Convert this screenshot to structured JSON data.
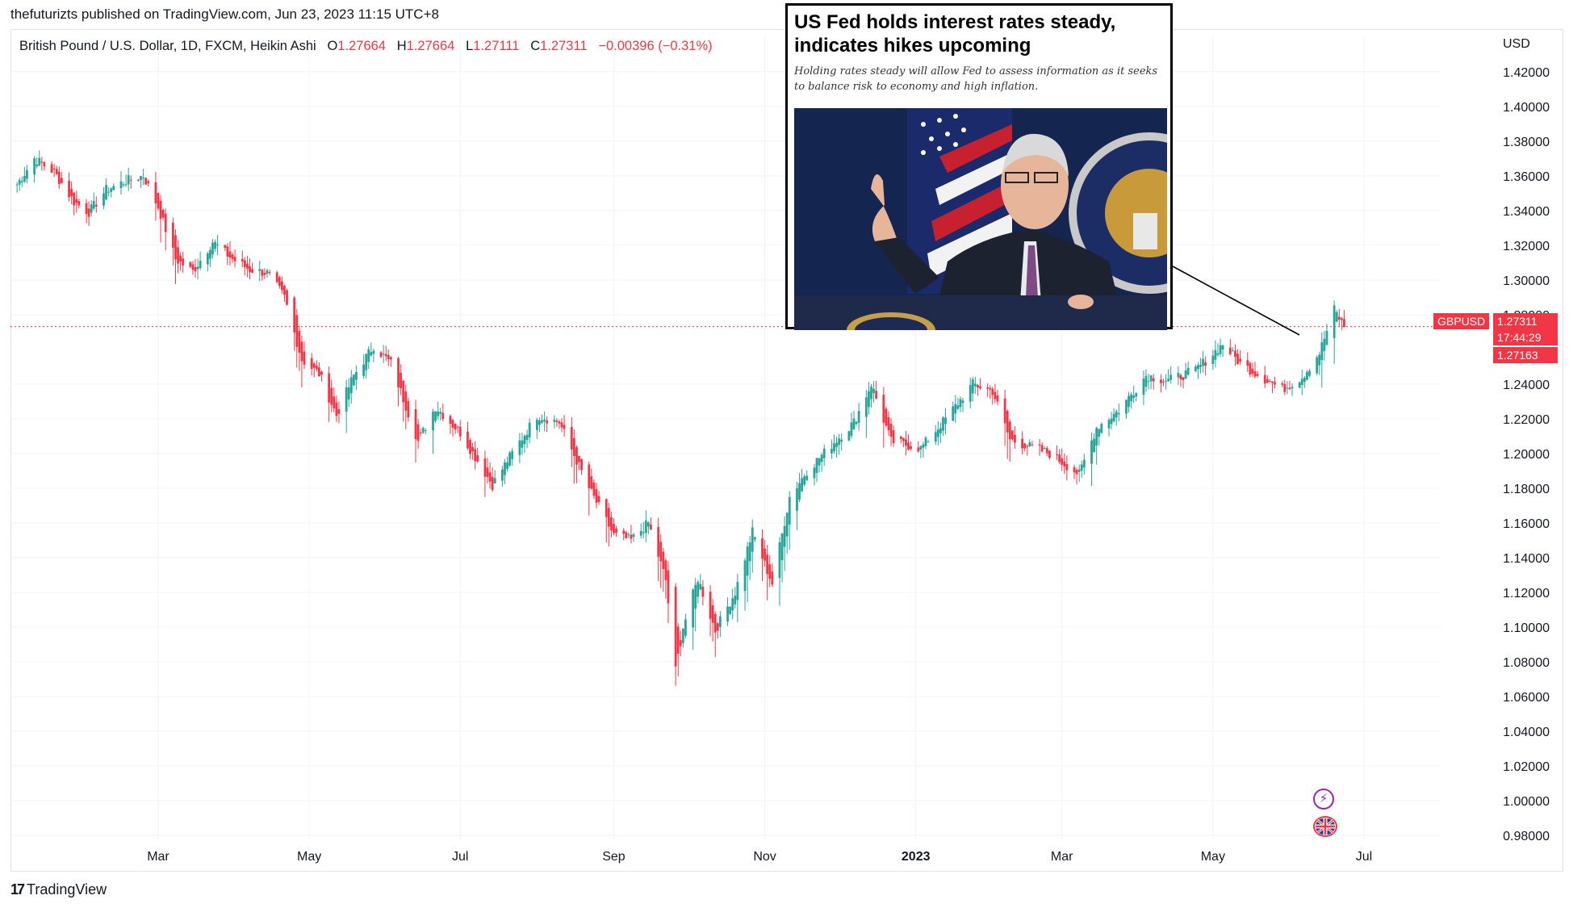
{
  "header": {
    "publisher": "thefuturizts published on TradingView.com, Jun 23, 2023 11:15 UTC+8",
    "symbol": "British Pound / U.S. Dollar, 1D, FXCM, Heikin Ashi",
    "ohlc": {
      "o_label": "O",
      "o": "1.27664",
      "h_label": "H",
      "h": "1.27664",
      "l_label": "L",
      "l": "1.27111",
      "c_label": "C",
      "c": "1.27311",
      "change": "−0.00396 (−0.31%)"
    }
  },
  "axis": {
    "currency": "USD",
    "price_ticks": [
      "1.42000",
      "1.40000",
      "1.38000",
      "1.36000",
      "1.34000",
      "1.32000",
      "1.30000",
      "1.28000",
      "1.24000",
      "1.22000",
      "1.20000",
      "1.18000",
      "1.16000",
      "1.14000",
      "1.12000",
      "1.10000",
      "1.08000",
      "1.06000",
      "1.04000",
      "1.02000",
      "1.00000",
      "0.98000"
    ],
    "time_ticks": [
      "Mar",
      "May",
      "Jul",
      "Sep",
      "Nov",
      "2023",
      "Mar",
      "May",
      "Jul"
    ]
  },
  "badges": {
    "symbol": "GBPUSD",
    "last_price": "1.27311",
    "countdown": "17:44:29",
    "prev_price": "1.27163"
  },
  "news": {
    "headline": "US Fed holds interest rates steady, indicates hikes upcoming",
    "subheadline": "Holding rates steady will allow Fed to assess information as it seeks to balance risk to economy and high inflation."
  },
  "footer": {
    "brand": "TradingView"
  },
  "colors": {
    "up": "#26a69a",
    "down": "#f23645",
    "grid": "#f0f3fa",
    "price_line": "#f23645"
  },
  "chart_data": {
    "type": "candlestick",
    "title": "British Pound / U.S. Dollar, 1D, FXCM, Heikin Ashi",
    "ylabel": "USD",
    "ylim": [
      0.98,
      1.425
    ],
    "x_range": [
      "2022-01-01",
      "2023-07-31"
    ],
    "last_close": 1.27311,
    "path_close": [
      {
        "date": "2022-01-03",
        "v": 1.355
      },
      {
        "date": "2022-01-10",
        "v": 1.37
      },
      {
        "date": "2022-01-18",
        "v": 1.362
      },
      {
        "date": "2022-01-26",
        "v": 1.345
      },
      {
        "date": "2022-02-01",
        "v": 1.339
      },
      {
        "date": "2022-02-08",
        "v": 1.352
      },
      {
        "date": "2022-02-16",
        "v": 1.357
      },
      {
        "date": "2022-02-23",
        "v": 1.36
      },
      {
        "date": "2022-03-01",
        "v": 1.342
      },
      {
        "date": "2022-03-08",
        "v": 1.312
      },
      {
        "date": "2022-03-15",
        "v": 1.305
      },
      {
        "date": "2022-03-23",
        "v": 1.322
      },
      {
        "date": "2022-03-31",
        "v": 1.312
      },
      {
        "date": "2022-04-07",
        "v": 1.306
      },
      {
        "date": "2022-04-14",
        "v": 1.304
      },
      {
        "date": "2022-04-21",
        "v": 1.29
      },
      {
        "date": "2022-04-28",
        "v": 1.254
      },
      {
        "date": "2022-05-05",
        "v": 1.246
      },
      {
        "date": "2022-05-12",
        "v": 1.222
      },
      {
        "date": "2022-05-19",
        "v": 1.245
      },
      {
        "date": "2022-05-27",
        "v": 1.262
      },
      {
        "date": "2022-06-03",
        "v": 1.252
      },
      {
        "date": "2022-06-14",
        "v": 1.207
      },
      {
        "date": "2022-06-21",
        "v": 1.227
      },
      {
        "date": "2022-07-01",
        "v": 1.212
      },
      {
        "date": "2022-07-14",
        "v": 1.182
      },
      {
        "date": "2022-07-21",
        "v": 1.198
      },
      {
        "date": "2022-08-01",
        "v": 1.222
      },
      {
        "date": "2022-08-10",
        "v": 1.218
      },
      {
        "date": "2022-08-22",
        "v": 1.18
      },
      {
        "date": "2022-09-01",
        "v": 1.153
      },
      {
        "date": "2022-09-08",
        "v": 1.15
      },
      {
        "date": "2022-09-15",
        "v": 1.16
      },
      {
        "date": "2022-09-22",
        "v": 1.127
      },
      {
        "date": "2022-09-26",
        "v": 1.075
      },
      {
        "date": "2022-09-29",
        "v": 1.1
      },
      {
        "date": "2022-10-05",
        "v": 1.128
      },
      {
        "date": "2022-10-12",
        "v": 1.098
      },
      {
        "date": "2022-10-20",
        "v": 1.12
      },
      {
        "date": "2022-10-27",
        "v": 1.155
      },
      {
        "date": "2022-11-04",
        "v": 1.125
      },
      {
        "date": "2022-11-11",
        "v": 1.175
      },
      {
        "date": "2022-11-18",
        "v": 1.19
      },
      {
        "date": "2022-11-28",
        "v": 1.205
      },
      {
        "date": "2022-12-07",
        "v": 1.218
      },
      {
        "date": "2022-12-14",
        "v": 1.24
      },
      {
        "date": "2022-12-22",
        "v": 1.207
      },
      {
        "date": "2023-01-03",
        "v": 1.203
      },
      {
        "date": "2023-01-13",
        "v": 1.22
      },
      {
        "date": "2023-01-24",
        "v": 1.24
      },
      {
        "date": "2023-02-01",
        "v": 1.236
      },
      {
        "date": "2023-02-08",
        "v": 1.208
      },
      {
        "date": "2023-02-16",
        "v": 1.204
      },
      {
        "date": "2023-02-24",
        "v": 1.2
      },
      {
        "date": "2023-03-08",
        "v": 1.188
      },
      {
        "date": "2023-03-15",
        "v": 1.215
      },
      {
        "date": "2023-03-24",
        "v": 1.225
      },
      {
        "date": "2023-04-04",
        "v": 1.245
      },
      {
        "date": "2023-04-13",
        "v": 1.242
      },
      {
        "date": "2023-04-24",
        "v": 1.248
      },
      {
        "date": "2023-05-05",
        "v": 1.263
      },
      {
        "date": "2023-05-12",
        "v": 1.252
      },
      {
        "date": "2023-05-22",
        "v": 1.243
      },
      {
        "date": "2023-05-29",
        "v": 1.237
      },
      {
        "date": "2023-06-06",
        "v": 1.244
      },
      {
        "date": "2023-06-13",
        "v": 1.258
      },
      {
        "date": "2023-06-19",
        "v": 1.283
      },
      {
        "date": "2023-06-23",
        "v": 1.273
      }
    ]
  }
}
